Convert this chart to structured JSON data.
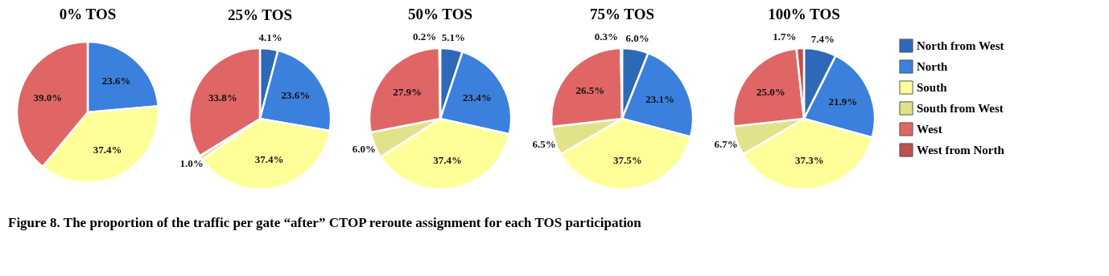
{
  "chart_data": [
    {
      "type": "pie",
      "title": "0% TOS",
      "categories": [
        null,
        null,
        null
      ],
      "values": [
        23.6,
        37.4,
        39.0
      ],
      "colors": [
        "#3b80dc",
        "#ffff99",
        "#e06666"
      ],
      "value_labels": [
        "23.6%",
        "37.4%",
        "39.0%"
      ],
      "annotations": [
        "Figure 8. The proportion of the traffic per gate “after” CTOP reroute assignment for each TOS participation"
      ]
    },
    {
      "type": "pie",
      "title": "25% TOS",
      "categories": [
        null,
        null,
        null,
        null,
        null
      ],
      "values": [
        4.1,
        23.6,
        37.4,
        1.0,
        33.8
      ],
      "colors": [
        "#2e69b8",
        "#3b80dc",
        "#ffff99",
        "#e2e28a",
        "#e06666"
      ],
      "value_labels": [
        "4.1%",
        "23.6%",
        "37.4%",
        "1.0%",
        "33.8%"
      ]
    },
    {
      "type": "pie",
      "title": "50% TOS",
      "categories": [
        null,
        null,
        null,
        null,
        null,
        null
      ],
      "values": [
        5.1,
        23.4,
        37.4,
        6.0,
        27.9,
        0.2
      ],
      "colors": [
        "#2e69b8",
        "#3b80dc",
        "#ffff99",
        "#e2e28a",
        "#e06666",
        "#c04f4f"
      ],
      "value_labels": [
        "5.1%",
        "23.4%",
        "37.4%",
        "6.0%",
        "27.9%",
        "0.2%"
      ]
    },
    {
      "type": "pie",
      "title": "75% TOS",
      "categories": [
        null,
        null,
        null,
        null,
        null,
        null
      ],
      "values": [
        6.0,
        23.1,
        37.5,
        6.5,
        26.5,
        0.3
      ],
      "colors": [
        "#2e69b8",
        "#3b80dc",
        "#ffff99",
        "#e2e28a",
        "#e06666",
        "#c04f4f"
      ],
      "value_labels": [
        "6.0%",
        "23.1%",
        "37.5%",
        "6.5%",
        "26.5%",
        "0.3%"
      ]
    },
    {
      "type": "pie",
      "title": "100% TOS",
      "categories": [
        "North from West",
        "North",
        "South",
        "South from West",
        "West",
        "West from North"
      ],
      "values": [
        7.4,
        21.9,
        37.3,
        6.7,
        25.0,
        1.7
      ],
      "colors": [
        "#2e69b8",
        "#3b80dc",
        "#ffff99",
        "#e2e28a",
        "#e06666",
        "#c04f4f"
      ],
      "value_labels": [
        "7.4%",
        "21.9%",
        "37.3%",
        "6.7%",
        "25.0%",
        "1.7%"
      ],
      "legend": "right"
    }
  ]
}
